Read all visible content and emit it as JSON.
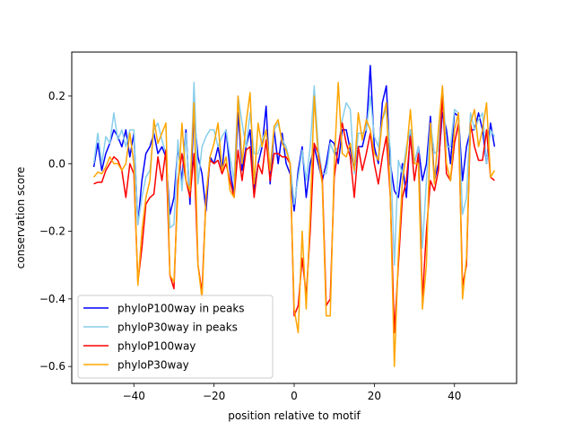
{
  "chart_data": {
    "type": "line",
    "title": "",
    "xlabel": "position relative to motif",
    "ylabel": "conservation score",
    "xlim": [
      -55.5,
      55.5
    ],
    "ylim": [
      -0.65,
      0.33
    ],
    "xticks": [
      -40,
      -20,
      0,
      20,
      40
    ],
    "yticks": [
      -0.6,
      -0.4,
      -0.2,
      0.0,
      0.2
    ],
    "ytick_labels": [
      "−0.6",
      "−0.4",
      "−0.2",
      "0.0",
      "0.2"
    ],
    "xtick_labels": [
      "−40",
      "−20",
      "0",
      "20",
      "40"
    ],
    "grid": false,
    "legend_position": "lower-left",
    "x": [
      -50,
      -49,
      -48,
      -47,
      -46,
      -45,
      -44,
      -43,
      -42,
      -41,
      -40,
      -39,
      -38,
      -37,
      -36,
      -35,
      -34,
      -33,
      -32,
      -31,
      -30,
      -29,
      -28,
      -27,
      -26,
      -25,
      -24,
      -23,
      -22,
      -21,
      -20,
      -19,
      -18,
      -17,
      -16,
      -15,
      -14,
      -13,
      -12,
      -11,
      -10,
      -9,
      -8,
      -7,
      -6,
      -5,
      -4,
      -3,
      -2,
      -1,
      0,
      1,
      2,
      3,
      4,
      5,
      6,
      7,
      8,
      9,
      10,
      11,
      12,
      13,
      14,
      15,
      16,
      17,
      18,
      19,
      20,
      21,
      22,
      23,
      24,
      25,
      26,
      27,
      28,
      29,
      30,
      31,
      32,
      33,
      34,
      35,
      36,
      37,
      38,
      39,
      40,
      41,
      42,
      43,
      44,
      45,
      46,
      47,
      48,
      49,
      50
    ],
    "series": [
      {
        "name": "phyloP100way in peaks",
        "color": "#0000ff",
        "values": [
          -0.01,
          0.06,
          -0.02,
          0.03,
          0.06,
          0.1,
          0.08,
          0.05,
          0.1,
          0.02,
          0.09,
          -0.18,
          -0.05,
          0.03,
          0.05,
          0.09,
          0.03,
          0.05,
          0.02,
          -0.15,
          -0.1,
          0.05,
          -0.05,
          0.1,
          -0.12,
          0.15,
          0.02,
          -0.03,
          -0.14,
          0.02,
          0.0,
          0.05,
          -0.02,
          0.1,
          -0.02,
          -0.09,
          0.15,
          -0.02,
          0.05,
          0.1,
          -0.08,
          0.0,
          0.05,
          0.17,
          -0.06,
          0.1,
          0.0,
          0.09,
          0.0,
          -0.03,
          -0.14,
          -0.02,
          0.05,
          -0.1,
          0.0,
          0.05,
          0.0,
          -0.05,
          0.0,
          0.07,
          0.06,
          0.0,
          0.1,
          0.1,
          0.04,
          -0.02,
          0.05,
          0.05,
          0.1,
          0.29,
          0.05,
          0.0,
          0.18,
          0.23,
          0.0,
          -0.08,
          -0.1,
          0.0,
          -0.1,
          0.1,
          0.0,
          0.05,
          -0.05,
          0.0,
          0.14,
          -0.05,
          0.0,
          0.15,
          0.1,
          0.0,
          0.15,
          0.14,
          -0.05,
          0.05,
          0.1,
          0.1,
          0.15,
          0.1,
          0.0,
          0.12,
          0.05
        ]
      },
      {
        "name": "phyloP30way in peaks",
        "color": "#87ceeb",
        "values": [
          0.0,
          0.09,
          0.0,
          0.08,
          0.06,
          0.15,
          0.07,
          0.1,
          0.05,
          0.1,
          0.1,
          -0.18,
          -0.1,
          -0.04,
          -0.02,
          0.1,
          0.12,
          0.07,
          0.03,
          -0.19,
          -0.18,
          0.07,
          -0.08,
          0.09,
          -0.1,
          0.24,
          -0.06,
          0.05,
          0.08,
          0.1,
          0.1,
          0.05,
          0.08,
          0.1,
          0.02,
          -0.05,
          0.2,
          0.12,
          0.05,
          0.15,
          0.03,
          0.03,
          0.07,
          0.1,
          -0.02,
          0.1,
          0.12,
          0.07,
          0.05,
          0.0,
          -0.12,
          -0.04,
          0.04,
          -0.05,
          0.05,
          0.23,
          0.05,
          -0.03,
          -0.03,
          0.06,
          0.03,
          0.05,
          0.13,
          0.18,
          0.16,
          -0.03,
          0.09,
          0.09,
          0.1,
          0.2,
          0.08,
          0.05,
          0.13,
          0.16,
          0.04,
          -0.3,
          0.01,
          -0.03,
          0.05,
          0.1,
          0.0,
          0.05,
          -0.25,
          -0.05,
          0.12,
          0.03,
          0.04,
          0.23,
          0.05,
          0.05,
          0.16,
          0.15,
          -0.15,
          -0.1,
          0.15,
          0.1,
          0.13,
          0.15,
          0.0,
          0.1,
          0.08
        ]
      },
      {
        "name": "phyloP100way",
        "color": "#ff0000",
        "values": [
          -0.06,
          -0.055,
          -0.055,
          -0.02,
          0.0,
          0.02,
          0.01,
          -0.02,
          -0.1,
          0.0,
          -0.03,
          -0.35,
          -0.25,
          -0.12,
          -0.1,
          -0.09,
          0.02,
          -0.05,
          0.04,
          -0.33,
          -0.37,
          -0.05,
          0.03,
          -0.05,
          -0.1,
          0.03,
          -0.3,
          -0.38,
          -0.1,
          0.01,
          0.0,
          0.01,
          -0.03,
          0.0,
          -0.05,
          -0.1,
          0.04,
          -0.05,
          0.04,
          0.05,
          -0.1,
          0.0,
          -0.03,
          0.07,
          -0.05,
          0.03,
          0.03,
          0.02,
          0.02,
          0.0,
          -0.45,
          -0.42,
          -0.28,
          -0.39,
          -0.2,
          0.06,
          0.03,
          -0.04,
          -0.42,
          -0.4,
          -0.04,
          0.05,
          0.12,
          0.06,
          0.02,
          -0.1,
          0.05,
          -0.02,
          0.03,
          0.09,
          0.0,
          -0.06,
          0.02,
          0.08,
          -0.1,
          -0.5,
          -0.3,
          -0.1,
          -0.05,
          0.08,
          -0.05,
          0.03,
          -0.4,
          -0.2,
          -0.05,
          -0.08,
          -0.02,
          0.2,
          -0.03,
          -0.05,
          0.06,
          0.12,
          -0.36,
          -0.3,
          0.12,
          0.05,
          0.01,
          0.01,
          0.1,
          -0.04,
          -0.05
        ]
      },
      {
        "name": "phyloP30way",
        "color": "#ffa500",
        "values": [
          -0.04,
          -0.025,
          -0.03,
          -0.01,
          0.02,
          0.0,
          0.0,
          -0.02,
          0.0,
          0.09,
          0.0,
          -0.36,
          -0.2,
          -0.1,
          -0.05,
          0.13,
          0.06,
          0.09,
          0.12,
          -0.33,
          -0.35,
          -0.08,
          0.12,
          -0.05,
          -0.08,
          0.18,
          -0.3,
          -0.4,
          -0.1,
          0.02,
          0.06,
          0.12,
          -0.02,
          0.02,
          -0.08,
          -0.1,
          0.2,
          0.0,
          0.12,
          0.21,
          -0.06,
          0.12,
          0.05,
          0.1,
          -0.02,
          0.11,
          0.13,
          0.06,
          0.04,
          0.0,
          -0.43,
          -0.5,
          -0.2,
          -0.43,
          -0.15,
          0.2,
          0.02,
          -0.06,
          -0.45,
          -0.45,
          0.0,
          0.24,
          0.03,
          0.02,
          0.06,
          -0.02,
          0.15,
          0.07,
          0.13,
          0.1,
          0.03,
          0.01,
          0.13,
          0.18,
          -0.1,
          -0.6,
          -0.27,
          -0.05,
          0.03,
          0.16,
          0.0,
          0.0,
          -0.43,
          -0.3,
          0.12,
          -0.06,
          0.1,
          0.23,
          0.0,
          -0.05,
          0.1,
          0.15,
          -0.4,
          -0.28,
          0.12,
          0.16,
          0.05,
          0.1,
          0.18,
          -0.04,
          -0.02
        ]
      }
    ]
  }
}
